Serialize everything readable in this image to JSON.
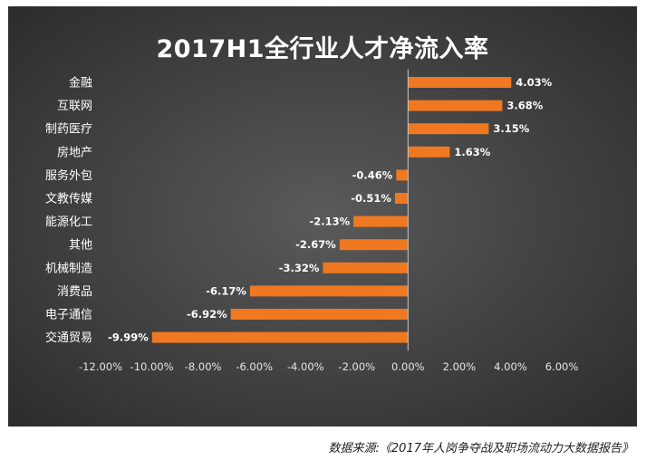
{
  "chart_data": {
    "type": "bar",
    "orientation": "horizontal",
    "title": "2017H1全行业人才净流入率",
    "categories": [
      "金融",
      "互联网",
      "制药医疗",
      "房地产",
      "服务外包",
      "文教传媒",
      "能源化工",
      "其他",
      "机械制造",
      "消费品",
      "电子通信",
      "交通贸易"
    ],
    "values": [
      4.03,
      3.68,
      3.15,
      1.63,
      -0.46,
      -0.51,
      -2.13,
      -2.67,
      -3.32,
      -6.17,
      -6.92,
      -9.99
    ],
    "value_labels": [
      "4.03%",
      "3.68%",
      "3.15%",
      "1.63%",
      "-0.46%",
      "-0.51%",
      "-2.13%",
      "-2.67%",
      "-3.32%",
      "-6.17%",
      "-6.92%",
      "-9.99%"
    ],
    "xlim": [
      -12,
      6
    ],
    "xticks": [
      -12,
      -10,
      -8,
      -6,
      -4,
      -2,
      0,
      2,
      4,
      6
    ],
    "xtick_labels": [
      "-12.00%",
      "-10.00%",
      "-8.00%",
      "-6.00%",
      "-4.00%",
      "-2.00%",
      "0.00%",
      "2.00%",
      "4.00%",
      "6.00%"
    ],
    "xlabel": "",
    "ylabel": "",
    "grid": false,
    "legend": "none",
    "bar_color": "#f07820",
    "background_color": "#454545"
  },
  "source_note": "数据来源:《2017年人岗争夺战及职场流动力大数据报告》"
}
